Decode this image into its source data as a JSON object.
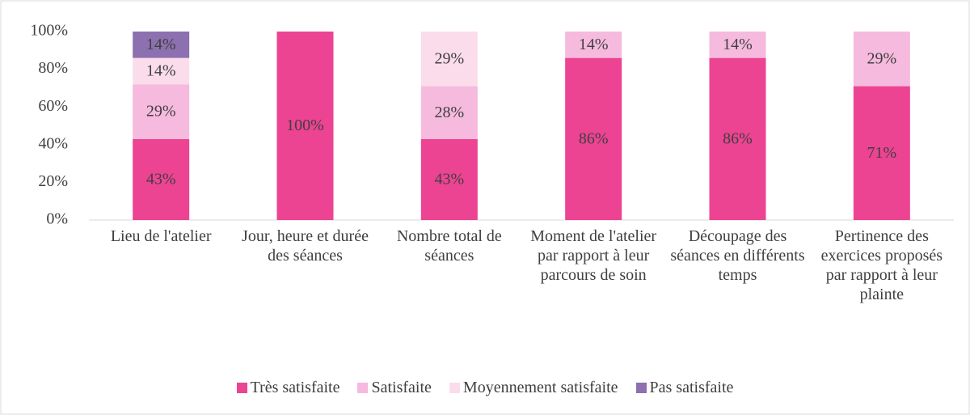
{
  "chart_data": {
    "type": "stacked_bar",
    "categories": [
      "Lieu de l'atelier",
      "Jour, heure et durée des séances",
      "Nombre total de séances",
      "Moment de l'atelier par rapport à leur parcours de soin",
      "Découpage des séances en différents temps",
      "Pertinence des exercices proposés par rapport à leur plainte"
    ],
    "series": [
      {
        "name": "Très satisfaite",
        "color": "#ec4393",
        "values": [
          43,
          100,
          43,
          86,
          86,
          71
        ],
        "value_labels": [
          "43%",
          "100%",
          "43%",
          "86%",
          "86%",
          "71%"
        ]
      },
      {
        "name": "Satisfaite",
        "color": "#f5bade",
        "values": [
          29,
          0,
          28,
          14,
          14,
          29
        ],
        "value_labels": [
          "29%",
          null,
          "28%",
          "14%",
          "14%",
          "29%"
        ]
      },
      {
        "name": "Moyennement satisfaite",
        "color": "#fbdcea",
        "values": [
          14,
          0,
          29,
          0,
          0,
          0
        ],
        "value_labels": [
          "14%",
          null,
          "29%",
          null,
          null,
          null
        ]
      },
      {
        "name": "Pas satisfaite",
        "color": "#8c70b0",
        "values": [
          14,
          0,
          0,
          0,
          0,
          0
        ],
        "value_labels": [
          "14%",
          null,
          null,
          null,
          null,
          null
        ]
      }
    ],
    "ylim": [
      0,
      100
    ],
    "yticks": [
      {
        "value": 0,
        "label": "0%"
      },
      {
        "value": 20,
        "label": "20%"
      },
      {
        "value": 40,
        "label": "40%"
      },
      {
        "value": 60,
        "label": "60%"
      },
      {
        "value": 80,
        "label": "80%"
      },
      {
        "value": 100,
        "label": "100%"
      }
    ],
    "grid": false,
    "legend": "bottom"
  }
}
